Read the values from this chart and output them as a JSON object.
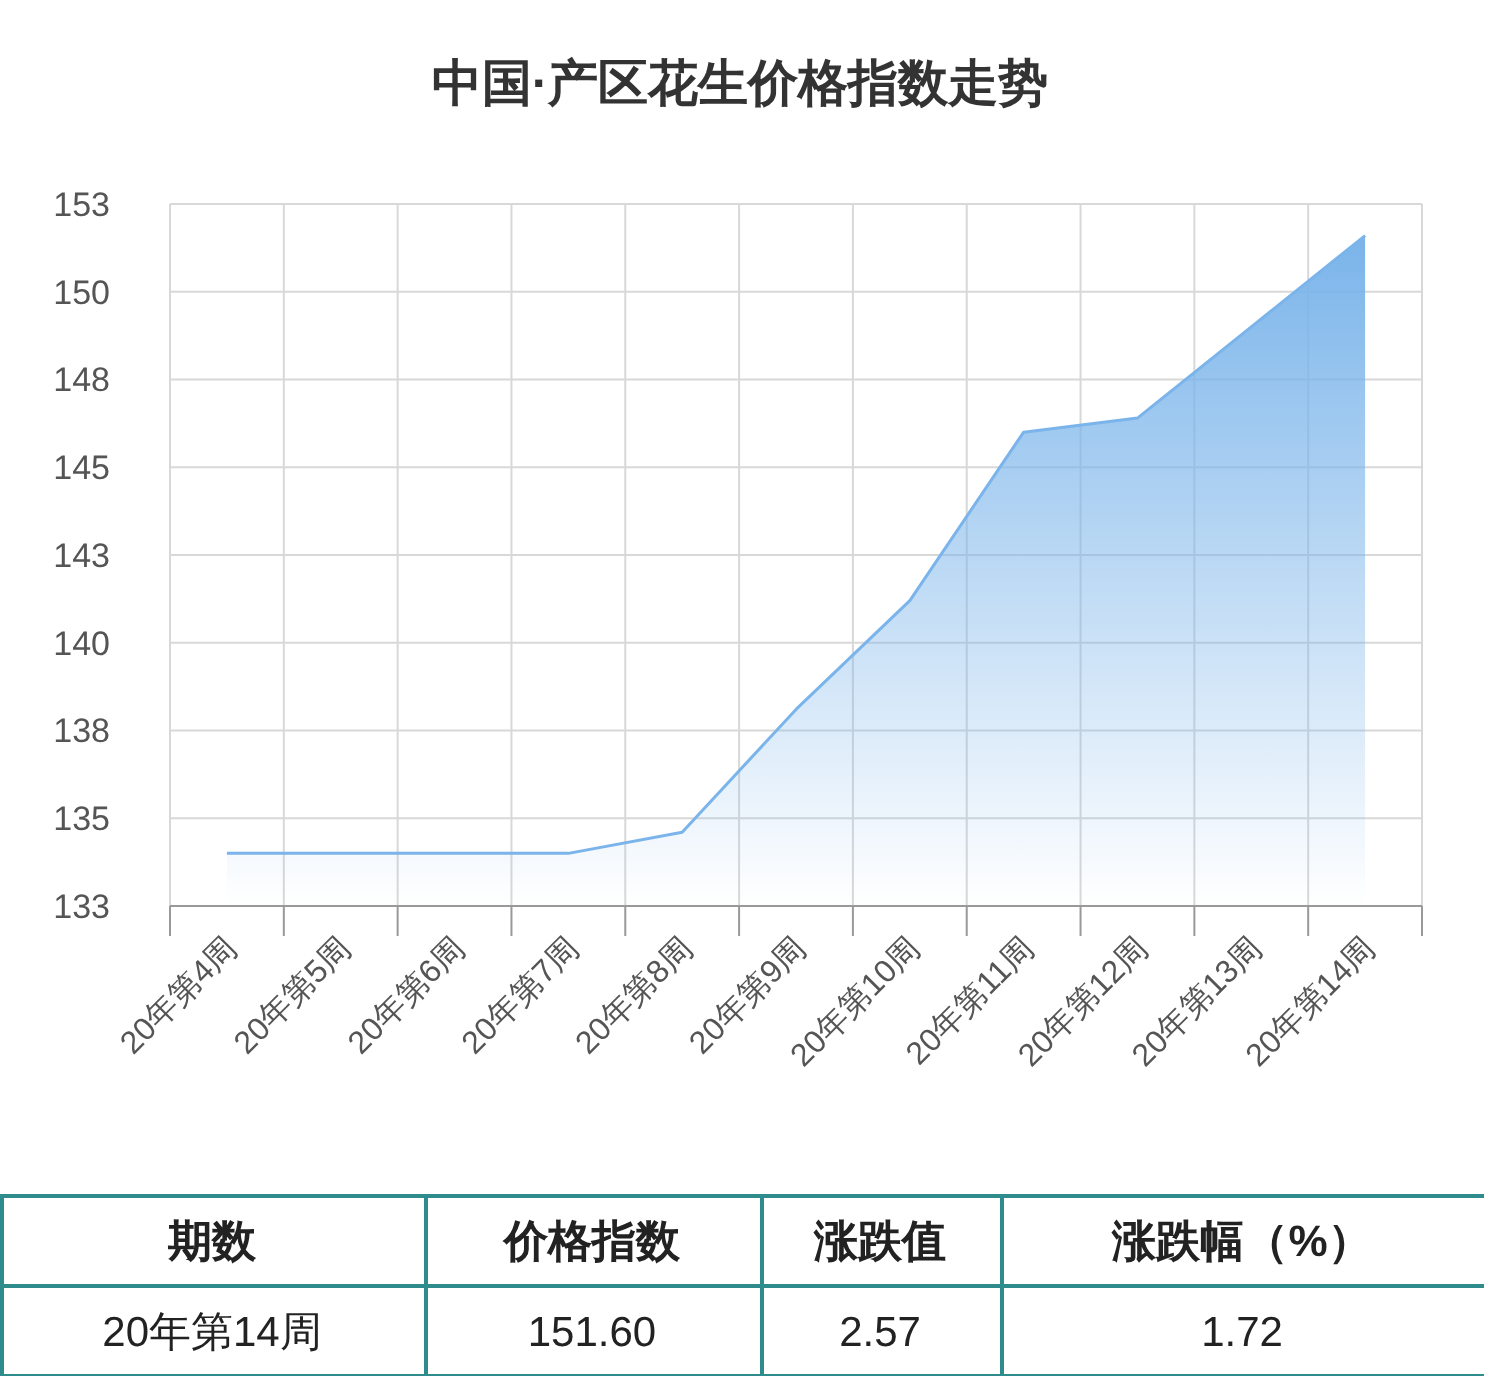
{
  "chart_data": {
    "type": "area",
    "title": "中国·产区花生价格指数走势",
    "categories": [
      "20年第4周",
      "20年第5周",
      "20年第6周",
      "20年第7周",
      "20年第8周",
      "20年第9周",
      "20年第10周",
      "20年第11周",
      "20年第12周",
      "20年第13周",
      "20年第14周"
    ],
    "series": [
      {
        "color": "#7ab4ea",
        "values": [
          134.0,
          134.0,
          134.0,
          134.0,
          134.6,
          138.1,
          141.2,
          146.0,
          146.4,
          149.0,
          151.6
        ]
      }
    ],
    "ylim": [
      132.5,
      152.5
    ],
    "yticks": [
      {
        "value": 132.5,
        "label": "133"
      },
      135,
      {
        "value": 137.5,
        "label": "138"
      },
      140,
      {
        "value": 142.5,
        "label": "143"
      },
      145,
      {
        "value": 147.5,
        "label": "148"
      },
      150,
      {
        "value": 152.5,
        "label": "153"
      }
    ],
    "grid": true,
    "annotations": [
      "期数",
      "价格指数",
      "涨跌值",
      "涨跌幅（%）",
      "20年第14周",
      "151.60",
      "2.57",
      "1.72"
    ]
  }
}
